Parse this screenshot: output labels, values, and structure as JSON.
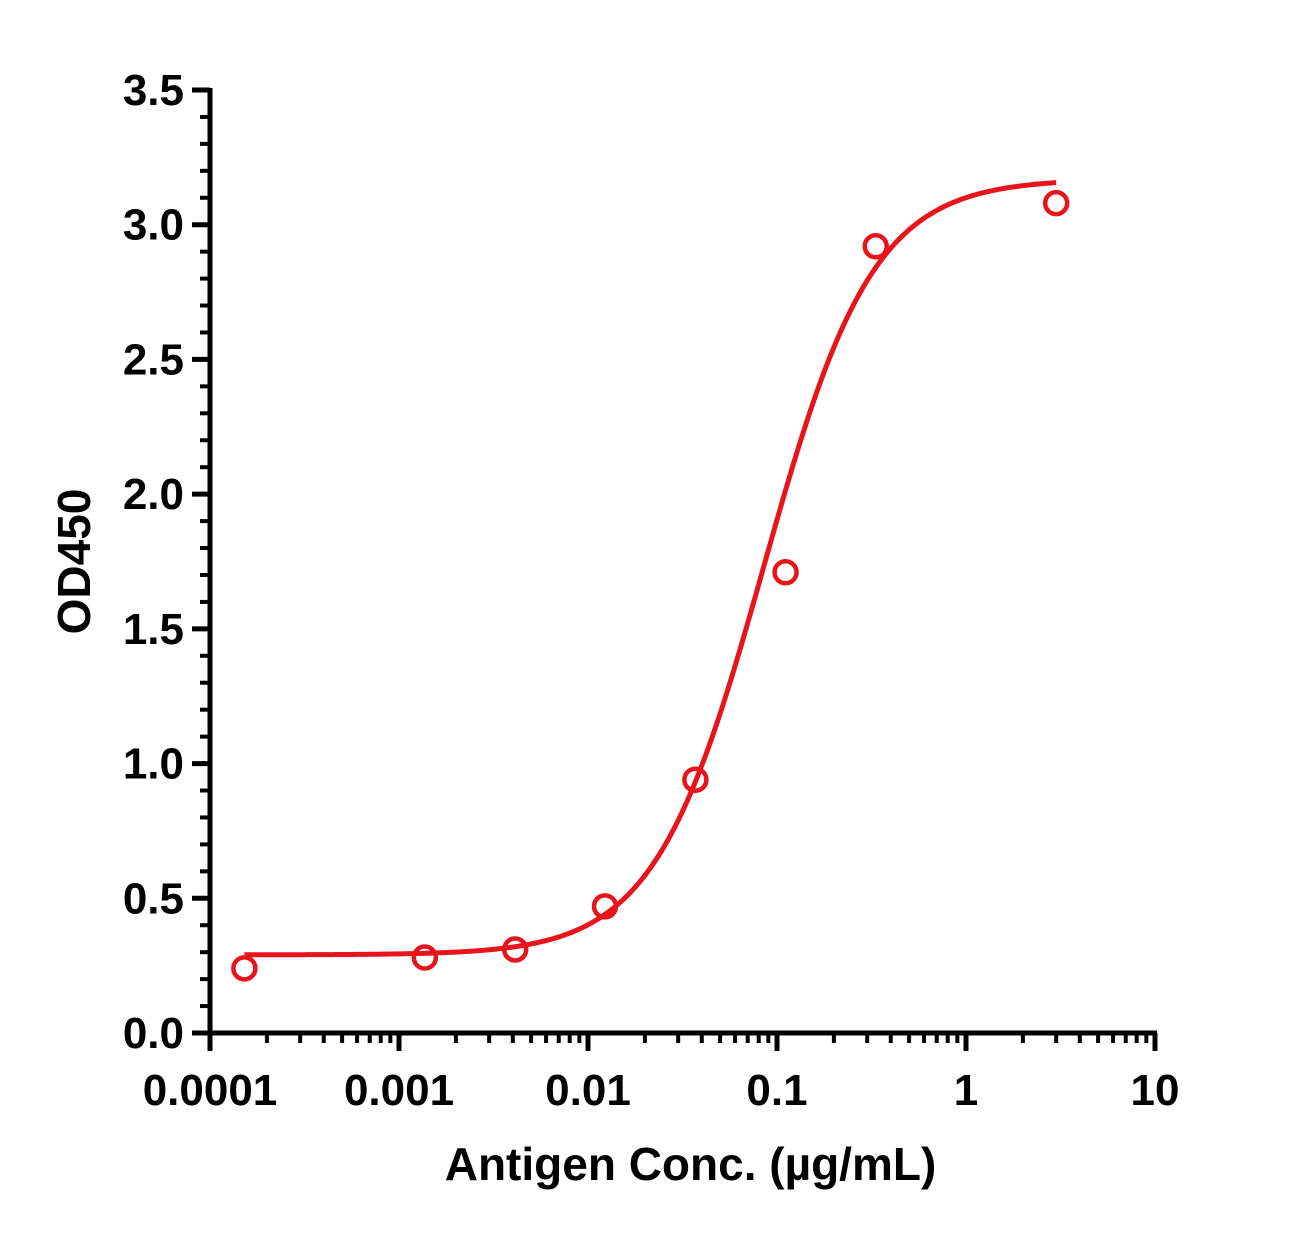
{
  "chart_data": {
    "type": "scatter",
    "title": "",
    "xlabel": "Antigen Conc. (µg/mL)",
    "ylabel": "OD450",
    "x_scale": "log",
    "xlim": [
      0.0001,
      10
    ],
    "ylim": [
      0,
      3.5
    ],
    "x_ticks": [
      0.0001,
      0.001,
      0.01,
      0.1,
      1,
      10
    ],
    "x_tick_labels": [
      "0.0001",
      "0.001",
      "0.01",
      "0.1",
      "1",
      "10"
    ],
    "y_ticks": [
      0,
      0.5,
      1,
      1.5,
      2,
      2.5,
      3,
      3.5
    ],
    "y_tick_labels": [
      "0.0",
      "0.5",
      "1.0",
      "1.5",
      "2.0",
      "2.5",
      "3.0",
      "3.5"
    ],
    "grid": false,
    "color": "#e8141c",
    "series": [
      {
        "points": [
          {
            "x": 0.000152,
            "y": 0.24
          },
          {
            "x": 0.00137,
            "y": 0.28
          },
          {
            "x": 0.00412,
            "y": 0.31
          },
          {
            "x": 0.0123,
            "y": 0.47
          },
          {
            "x": 0.037,
            "y": 0.94
          },
          {
            "x": 0.111,
            "y": 1.71
          },
          {
            "x": 0.333,
            "y": 2.92
          },
          {
            "x": 3.0,
            "y": 3.08
          }
        ],
        "fit": {
          "model": "4PL",
          "bottom": 0.29,
          "top": 3.17,
          "ec50": 0.085,
          "hill": 1.5,
          "x_range": [
            0.000152,
            3.0
          ]
        }
      }
    ]
  }
}
